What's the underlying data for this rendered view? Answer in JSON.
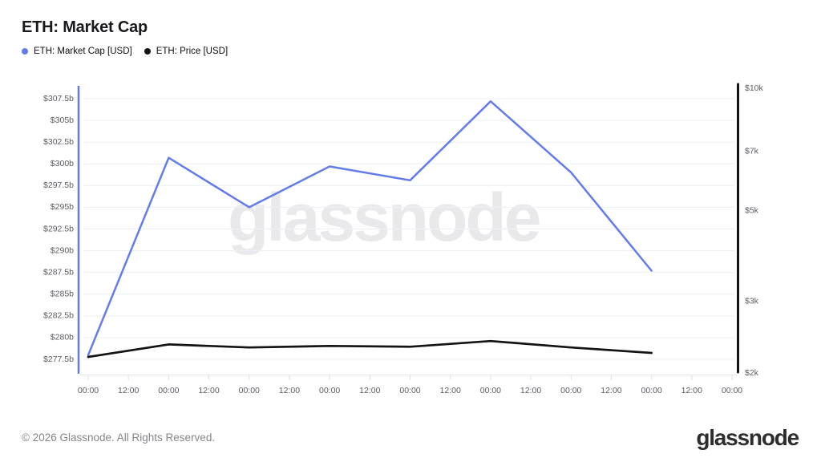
{
  "header": {
    "title": "ETH: Market Cap"
  },
  "legend": [
    {
      "label": "ETH: Market Cap [USD]",
      "color": "#647ceb"
    },
    {
      "label": "ETH: Price [USD]",
      "color": "#141414"
    }
  ],
  "watermark": "glassnode",
  "footer": {
    "copyright": "© 2026 Glassnode. All Rights Reserved.",
    "brand": "glassnode"
  },
  "chart_data": {
    "type": "line",
    "title": "ETH: Market Cap",
    "legend_position": "top-left",
    "grid": "horizontal",
    "watermark": "glassnode",
    "x_axis": {
      "tick_labels": [
        "00:00",
        "12:00",
        "00:00",
        "12:00",
        "00:00",
        "12:00",
        "00:00",
        "12:00",
        "00:00",
        "12:00",
        "00:00",
        "12:00",
        "00:00",
        "12:00",
        "00:00",
        "12:00",
        "00:00"
      ],
      "data_point_tick_indices": [
        0,
        2,
        4,
        6,
        8,
        10,
        12,
        14
      ]
    },
    "left_axis": {
      "scale": "linear",
      "min": 277.5,
      "max": 307.5,
      "tick_step": 2.5,
      "tick_labels": [
        "$307.5b",
        "$305b",
        "$302.5b",
        "$300b",
        "$297.5b",
        "$295b",
        "$292.5b",
        "$290b",
        "$287.5b",
        "$285b",
        "$282.5b",
        "$280b",
        "$277.5b"
      ],
      "color": "#647ceb"
    },
    "right_axis": {
      "scale": "log",
      "min": 2000,
      "max": 10000,
      "tick_values": [
        10000,
        7000,
        5000,
        3000,
        2000
      ],
      "tick_labels": [
        "$10k",
        "$7k",
        "$5k",
        "$3k",
        "$2k"
      ],
      "color": "#141414"
    },
    "series": [
      {
        "name": "ETH: Market Cap [USD]",
        "axis": "left",
        "unit": "billion USD",
        "color": "#647ceb",
        "values": [
          278.0,
          300.7,
          295.0,
          299.7,
          298.1,
          307.2,
          299.0,
          287.7
        ]
      },
      {
        "name": "ETH: Price [USD]",
        "axis": "right",
        "unit": "USD",
        "color": "#141414",
        "values": [
          2190,
          2350,
          2310,
          2330,
          2320,
          2395,
          2310,
          2240
        ]
      }
    ]
  }
}
